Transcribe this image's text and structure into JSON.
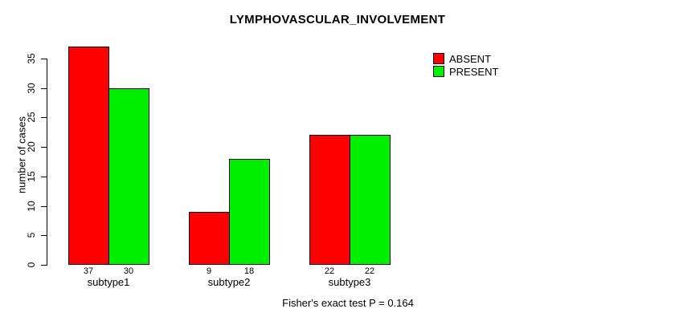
{
  "chart_data": {
    "type": "bar",
    "title": "LYMPHOVASCULAR_INVOLVEMENT",
    "xlabel": "",
    "ylabel": "number of cases",
    "categories": [
      "subtype1",
      "subtype2",
      "subtype3"
    ],
    "series": [
      {
        "name": "ABSENT",
        "color": "#FF0000",
        "values": [
          37,
          9,
          22
        ]
      },
      {
        "name": "PRESENT",
        "color": "#00F000",
        "values": [
          30,
          18,
          22
        ]
      }
    ],
    "yticks": [
      0,
      5,
      10,
      15,
      20,
      25,
      30,
      35
    ],
    "ylim": [
      0,
      35
    ],
    "grid": false,
    "bar_value_labels_shown": true,
    "legend_position": "top-right",
    "annotation": "Fisher's exact test P = 0.164"
  },
  "colors": {
    "axis": "#000000",
    "text": "#000000",
    "background": "#FFFFFF"
  }
}
